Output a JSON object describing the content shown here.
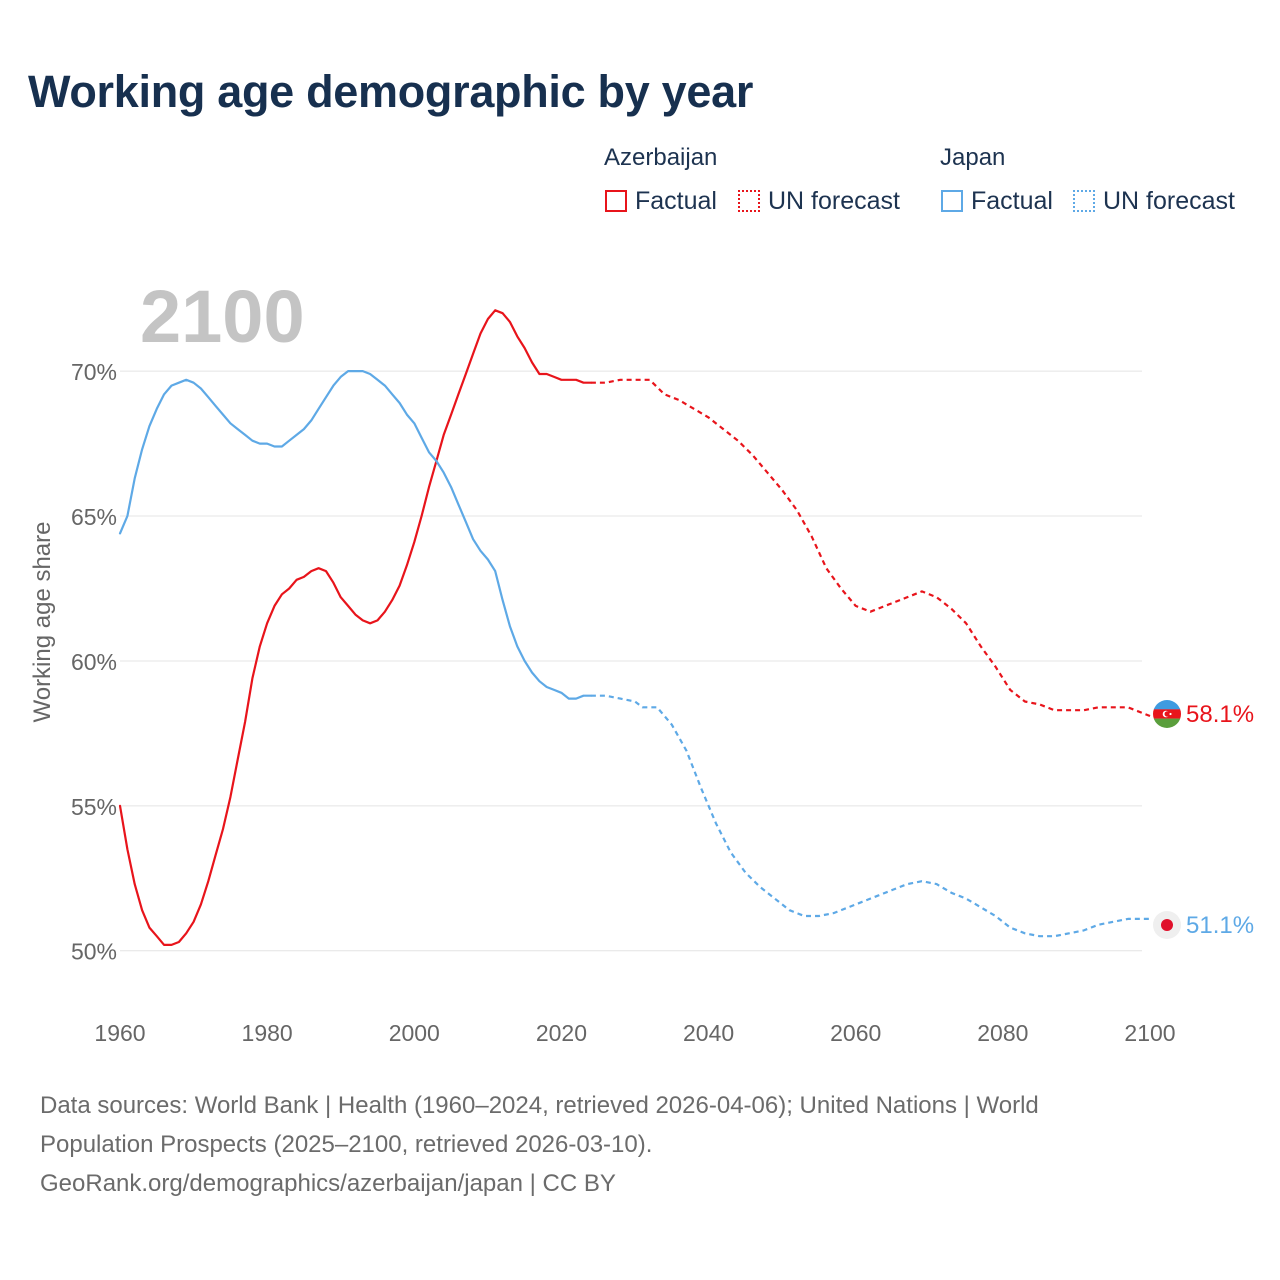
{
  "chart_data": {
    "type": "line",
    "title": "Working age demographic by year",
    "year_label": "2100",
    "ylabel": "Working age share",
    "xlabel": "",
    "xlim": [
      1960,
      2100
    ],
    "ylim": [
      48.3,
      72.8
    ],
    "x_ticks": [
      1960,
      1980,
      2000,
      2020,
      2040,
      2060,
      2080,
      2100
    ],
    "x_tick_labels": [
      "1960",
      "1980",
      "2000",
      "2020",
      "2040",
      "2060",
      "2080",
      "2100"
    ],
    "y_ticks": [
      50,
      55,
      60,
      65,
      70
    ],
    "y_tick_labels": [
      "50%",
      "55%",
      "60%",
      "65%",
      "70%"
    ],
    "grid": true,
    "series": [
      {
        "name": "Azerbaijan",
        "color": "#e8141b",
        "end_label": "58.1%",
        "flag": "azerbaijan",
        "factual": [
          [
            1960,
            55.0
          ],
          [
            1961,
            53.5
          ],
          [
            1962,
            52.3
          ],
          [
            1963,
            51.4
          ],
          [
            1964,
            50.8
          ],
          [
            1965,
            50.5
          ],
          [
            1966,
            50.2
          ],
          [
            1967,
            50.2
          ],
          [
            1968,
            50.3
          ],
          [
            1969,
            50.6
          ],
          [
            1970,
            51.0
          ],
          [
            1971,
            51.6
          ],
          [
            1972,
            52.4
          ],
          [
            1973,
            53.3
          ],
          [
            1974,
            54.2
          ],
          [
            1975,
            55.3
          ],
          [
            1976,
            56.6
          ],
          [
            1977,
            57.9
          ],
          [
            1978,
            59.4
          ],
          [
            1979,
            60.5
          ],
          [
            1980,
            61.3
          ],
          [
            1981,
            61.9
          ],
          [
            1982,
            62.3
          ],
          [
            1983,
            62.5
          ],
          [
            1984,
            62.8
          ],
          [
            1985,
            62.9
          ],
          [
            1986,
            63.1
          ],
          [
            1987,
            63.2
          ],
          [
            1988,
            63.1
          ],
          [
            1989,
            62.7
          ],
          [
            1990,
            62.2
          ],
          [
            1991,
            61.9
          ],
          [
            1992,
            61.6
          ],
          [
            1993,
            61.4
          ],
          [
            1994,
            61.3
          ],
          [
            1995,
            61.4
          ],
          [
            1996,
            61.7
          ],
          [
            1997,
            62.1
          ],
          [
            1998,
            62.6
          ],
          [
            1999,
            63.3
          ],
          [
            2000,
            64.1
          ],
          [
            2001,
            65.0
          ],
          [
            2002,
            66.0
          ],
          [
            2003,
            66.9
          ],
          [
            2004,
            67.8
          ],
          [
            2005,
            68.5
          ],
          [
            2006,
            69.2
          ],
          [
            2007,
            69.9
          ],
          [
            2008,
            70.6
          ],
          [
            2009,
            71.3
          ],
          [
            2010,
            71.8
          ],
          [
            2011,
            72.1
          ],
          [
            2012,
            72.0
          ],
          [
            2013,
            71.7
          ],
          [
            2014,
            71.2
          ],
          [
            2015,
            70.8
          ],
          [
            2016,
            70.3
          ],
          [
            2017,
            69.9
          ],
          [
            2018,
            69.9
          ],
          [
            2019,
            69.8
          ],
          [
            2020,
            69.7
          ],
          [
            2021,
            69.7
          ],
          [
            2022,
            69.7
          ],
          [
            2023,
            69.6
          ],
          [
            2024,
            69.6
          ]
        ],
        "forecast": [
          [
            2024,
            69.6
          ],
          [
            2026,
            69.6
          ],
          [
            2028,
            69.7
          ],
          [
            2030,
            69.7
          ],
          [
            2032,
            69.7
          ],
          [
            2034,
            69.2
          ],
          [
            2036,
            69.0
          ],
          [
            2038,
            68.7
          ],
          [
            2040,
            68.4
          ],
          [
            2042,
            68.0
          ],
          [
            2044,
            67.6
          ],
          [
            2046,
            67.1
          ],
          [
            2048,
            66.5
          ],
          [
            2050,
            65.9
          ],
          [
            2052,
            65.2
          ],
          [
            2054,
            64.3
          ],
          [
            2056,
            63.2
          ],
          [
            2058,
            62.5
          ],
          [
            2060,
            61.9
          ],
          [
            2062,
            61.7
          ],
          [
            2064,
            61.9
          ],
          [
            2066,
            62.1
          ],
          [
            2068,
            62.3
          ],
          [
            2069,
            62.4
          ],
          [
            2071,
            62.2
          ],
          [
            2073,
            61.8
          ],
          [
            2075,
            61.3
          ],
          [
            2077,
            60.5
          ],
          [
            2079,
            59.8
          ],
          [
            2081,
            59.0
          ],
          [
            2083,
            58.6
          ],
          [
            2085,
            58.5
          ],
          [
            2087,
            58.3
          ],
          [
            2089,
            58.3
          ],
          [
            2091,
            58.3
          ],
          [
            2093,
            58.4
          ],
          [
            2095,
            58.4
          ],
          [
            2097,
            58.4
          ],
          [
            2099,
            58.2
          ],
          [
            2100,
            58.1
          ]
        ]
      },
      {
        "name": "Japan",
        "color": "#5ea9e6",
        "end_label": "51.1%",
        "flag": "japan",
        "factual": [
          [
            1960,
            64.4
          ],
          [
            1961,
            65.0
          ],
          [
            1962,
            66.3
          ],
          [
            1963,
            67.3
          ],
          [
            1964,
            68.1
          ],
          [
            1965,
            68.7
          ],
          [
            1966,
            69.2
          ],
          [
            1967,
            69.5
          ],
          [
            1968,
            69.6
          ],
          [
            1969,
            69.7
          ],
          [
            1970,
            69.6
          ],
          [
            1971,
            69.4
          ],
          [
            1972,
            69.1
          ],
          [
            1973,
            68.8
          ],
          [
            1974,
            68.5
          ],
          [
            1975,
            68.2
          ],
          [
            1976,
            68.0
          ],
          [
            1977,
            67.8
          ],
          [
            1978,
            67.6
          ],
          [
            1979,
            67.5
          ],
          [
            1980,
            67.5
          ],
          [
            1981,
            67.4
          ],
          [
            1982,
            67.4
          ],
          [
            1983,
            67.6
          ],
          [
            1984,
            67.8
          ],
          [
            1985,
            68.0
          ],
          [
            1986,
            68.3
          ],
          [
            1987,
            68.7
          ],
          [
            1988,
            69.1
          ],
          [
            1989,
            69.5
          ],
          [
            1990,
            69.8
          ],
          [
            1991,
            70.0
          ],
          [
            1992,
            70.0
          ],
          [
            1993,
            70.0
          ],
          [
            1994,
            69.9
          ],
          [
            1995,
            69.7
          ],
          [
            1996,
            69.5
          ],
          [
            1997,
            69.2
          ],
          [
            1998,
            68.9
          ],
          [
            1999,
            68.5
          ],
          [
            2000,
            68.2
          ],
          [
            2001,
            67.7
          ],
          [
            2002,
            67.2
          ],
          [
            2003,
            66.9
          ],
          [
            2004,
            66.5
          ],
          [
            2005,
            66.0
          ],
          [
            2006,
            65.4
          ],
          [
            2007,
            64.8
          ],
          [
            2008,
            64.2
          ],
          [
            2009,
            63.8
          ],
          [
            2010,
            63.5
          ],
          [
            2011,
            63.1
          ],
          [
            2012,
            62.1
          ],
          [
            2013,
            61.2
          ],
          [
            2014,
            60.5
          ],
          [
            2015,
            60.0
          ],
          [
            2016,
            59.6
          ],
          [
            2017,
            59.3
          ],
          [
            2018,
            59.1
          ],
          [
            2019,
            59.0
          ],
          [
            2020,
            58.9
          ],
          [
            2021,
            58.7
          ],
          [
            2022,
            58.7
          ],
          [
            2023,
            58.8
          ],
          [
            2024,
            58.8
          ]
        ],
        "forecast": [
          [
            2024,
            58.8
          ],
          [
            2026,
            58.8
          ],
          [
            2028,
            58.7
          ],
          [
            2030,
            58.6
          ],
          [
            2031,
            58.4
          ],
          [
            2033,
            58.4
          ],
          [
            2035,
            57.8
          ],
          [
            2037,
            56.9
          ],
          [
            2039,
            55.6
          ],
          [
            2041,
            54.4
          ],
          [
            2043,
            53.4
          ],
          [
            2045,
            52.7
          ],
          [
            2047,
            52.2
          ],
          [
            2049,
            51.8
          ],
          [
            2051,
            51.4
          ],
          [
            2053,
            51.2
          ],
          [
            2055,
            51.2
          ],
          [
            2057,
            51.3
          ],
          [
            2059,
            51.5
          ],
          [
            2061,
            51.7
          ],
          [
            2063,
            51.9
          ],
          [
            2065,
            52.1
          ],
          [
            2067,
            52.3
          ],
          [
            2069,
            52.4
          ],
          [
            2071,
            52.3
          ],
          [
            2073,
            52.0
          ],
          [
            2075,
            51.8
          ],
          [
            2077,
            51.5
          ],
          [
            2079,
            51.2
          ],
          [
            2081,
            50.8
          ],
          [
            2083,
            50.6
          ],
          [
            2085,
            50.5
          ],
          [
            2087,
            50.5
          ],
          [
            2089,
            50.6
          ],
          [
            2091,
            50.7
          ],
          [
            2093,
            50.9
          ],
          [
            2095,
            51.0
          ],
          [
            2097,
            51.1
          ],
          [
            2099,
            51.1
          ],
          [
            2100,
            51.1
          ]
        ]
      }
    ],
    "legend": {
      "position": "top-right",
      "groups": [
        {
          "title": "Azerbaijan",
          "factual_label": "Factual",
          "forecast_label": "UN forecast",
          "color": "#e8141b"
        },
        {
          "title": "Japan",
          "factual_label": "Factual",
          "forecast_label": "UN forecast",
          "color": "#5ea9e6"
        }
      ]
    }
  },
  "source_note": {
    "line1": "Data sources: World Bank | Health (1960–2024, retrieved 2026-04-06); United Nations | World",
    "line2": "Population Prospects (2025–2100, retrieved 2026-03-10).",
    "line3": "GeoRank.org/demographics/azerbaijan/japan | CC BY"
  }
}
